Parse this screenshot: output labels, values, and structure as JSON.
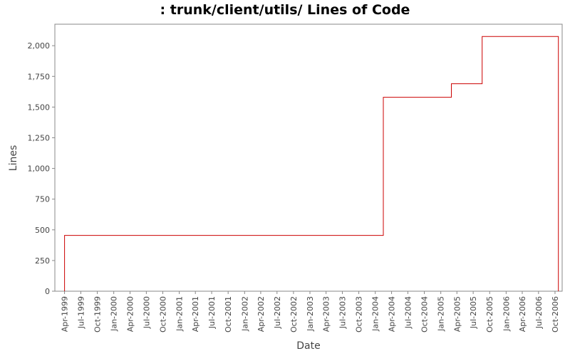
{
  "chart_data": {
    "type": "line",
    "step": true,
    "title": ": trunk/client/utils/ Lines of Code",
    "xlabel": "Date",
    "ylabel": "Lines",
    "ylim": [
      0,
      2175
    ],
    "xlim": [
      "1999-02-06",
      "2006-11-10"
    ],
    "yticks": [
      0,
      250,
      500,
      750,
      1000,
      1250,
      1500,
      1750,
      2000
    ],
    "ytick_labels": [
      "0",
      "250",
      "500",
      "750",
      "1,000",
      "1,250",
      "1,500",
      "1,750",
      "2,000"
    ],
    "xticks": [
      "1999-04-01",
      "1999-07-01",
      "1999-10-01",
      "2000-01-01",
      "2000-04-01",
      "2000-07-01",
      "2000-10-01",
      "2001-01-01",
      "2001-04-01",
      "2001-07-01",
      "2001-10-01",
      "2002-01-01",
      "2002-04-01",
      "2002-07-01",
      "2002-10-01",
      "2003-01-01",
      "2003-04-01",
      "2003-07-01",
      "2003-10-01",
      "2004-01-01",
      "2004-04-01",
      "2004-07-01",
      "2004-10-01",
      "2005-01-01",
      "2005-04-01",
      "2005-07-01",
      "2005-10-01",
      "2006-01-01",
      "2006-04-01",
      "2006-07-01",
      "2006-10-01"
    ],
    "xtick_labels": [
      "Apr-1999",
      "Jul-1999",
      "Oct-1999",
      "Jan-2000",
      "Apr-2000",
      "Jul-2000",
      "Oct-2000",
      "Jan-2001",
      "Apr-2001",
      "Jul-2001",
      "Oct-2001",
      "Jan-2002",
      "Apr-2002",
      "Jul-2002",
      "Oct-2002",
      "Jan-2003",
      "Apr-2003",
      "Jul-2003",
      "Oct-2003",
      "Jan-2004",
      "Apr-2004",
      "Jul-2004",
      "Oct-2004",
      "Jan-2005",
      "Apr-2005",
      "Jul-2005",
      "Oct-2005",
      "Jan-2006",
      "Apr-2006",
      "Jul-2006",
      "Oct-2006"
    ],
    "grid": false,
    "series": [
      {
        "color": "#cc0000",
        "points": [
          {
            "x": "1999-04-01",
            "y": 0
          },
          {
            "x": "1999-04-01",
            "y": 455
          },
          {
            "x": "2004-02-15",
            "y": 455
          },
          {
            "x": "2004-02-15",
            "y": 1580
          },
          {
            "x": "2005-03-01",
            "y": 1580
          },
          {
            "x": "2005-03-01",
            "y": 1690
          },
          {
            "x": "2005-08-20",
            "y": 1690
          },
          {
            "x": "2005-08-20",
            "y": 2075
          },
          {
            "x": "2006-10-20",
            "y": 2075
          },
          {
            "x": "2006-10-20",
            "y": 0
          }
        ]
      }
    ]
  }
}
